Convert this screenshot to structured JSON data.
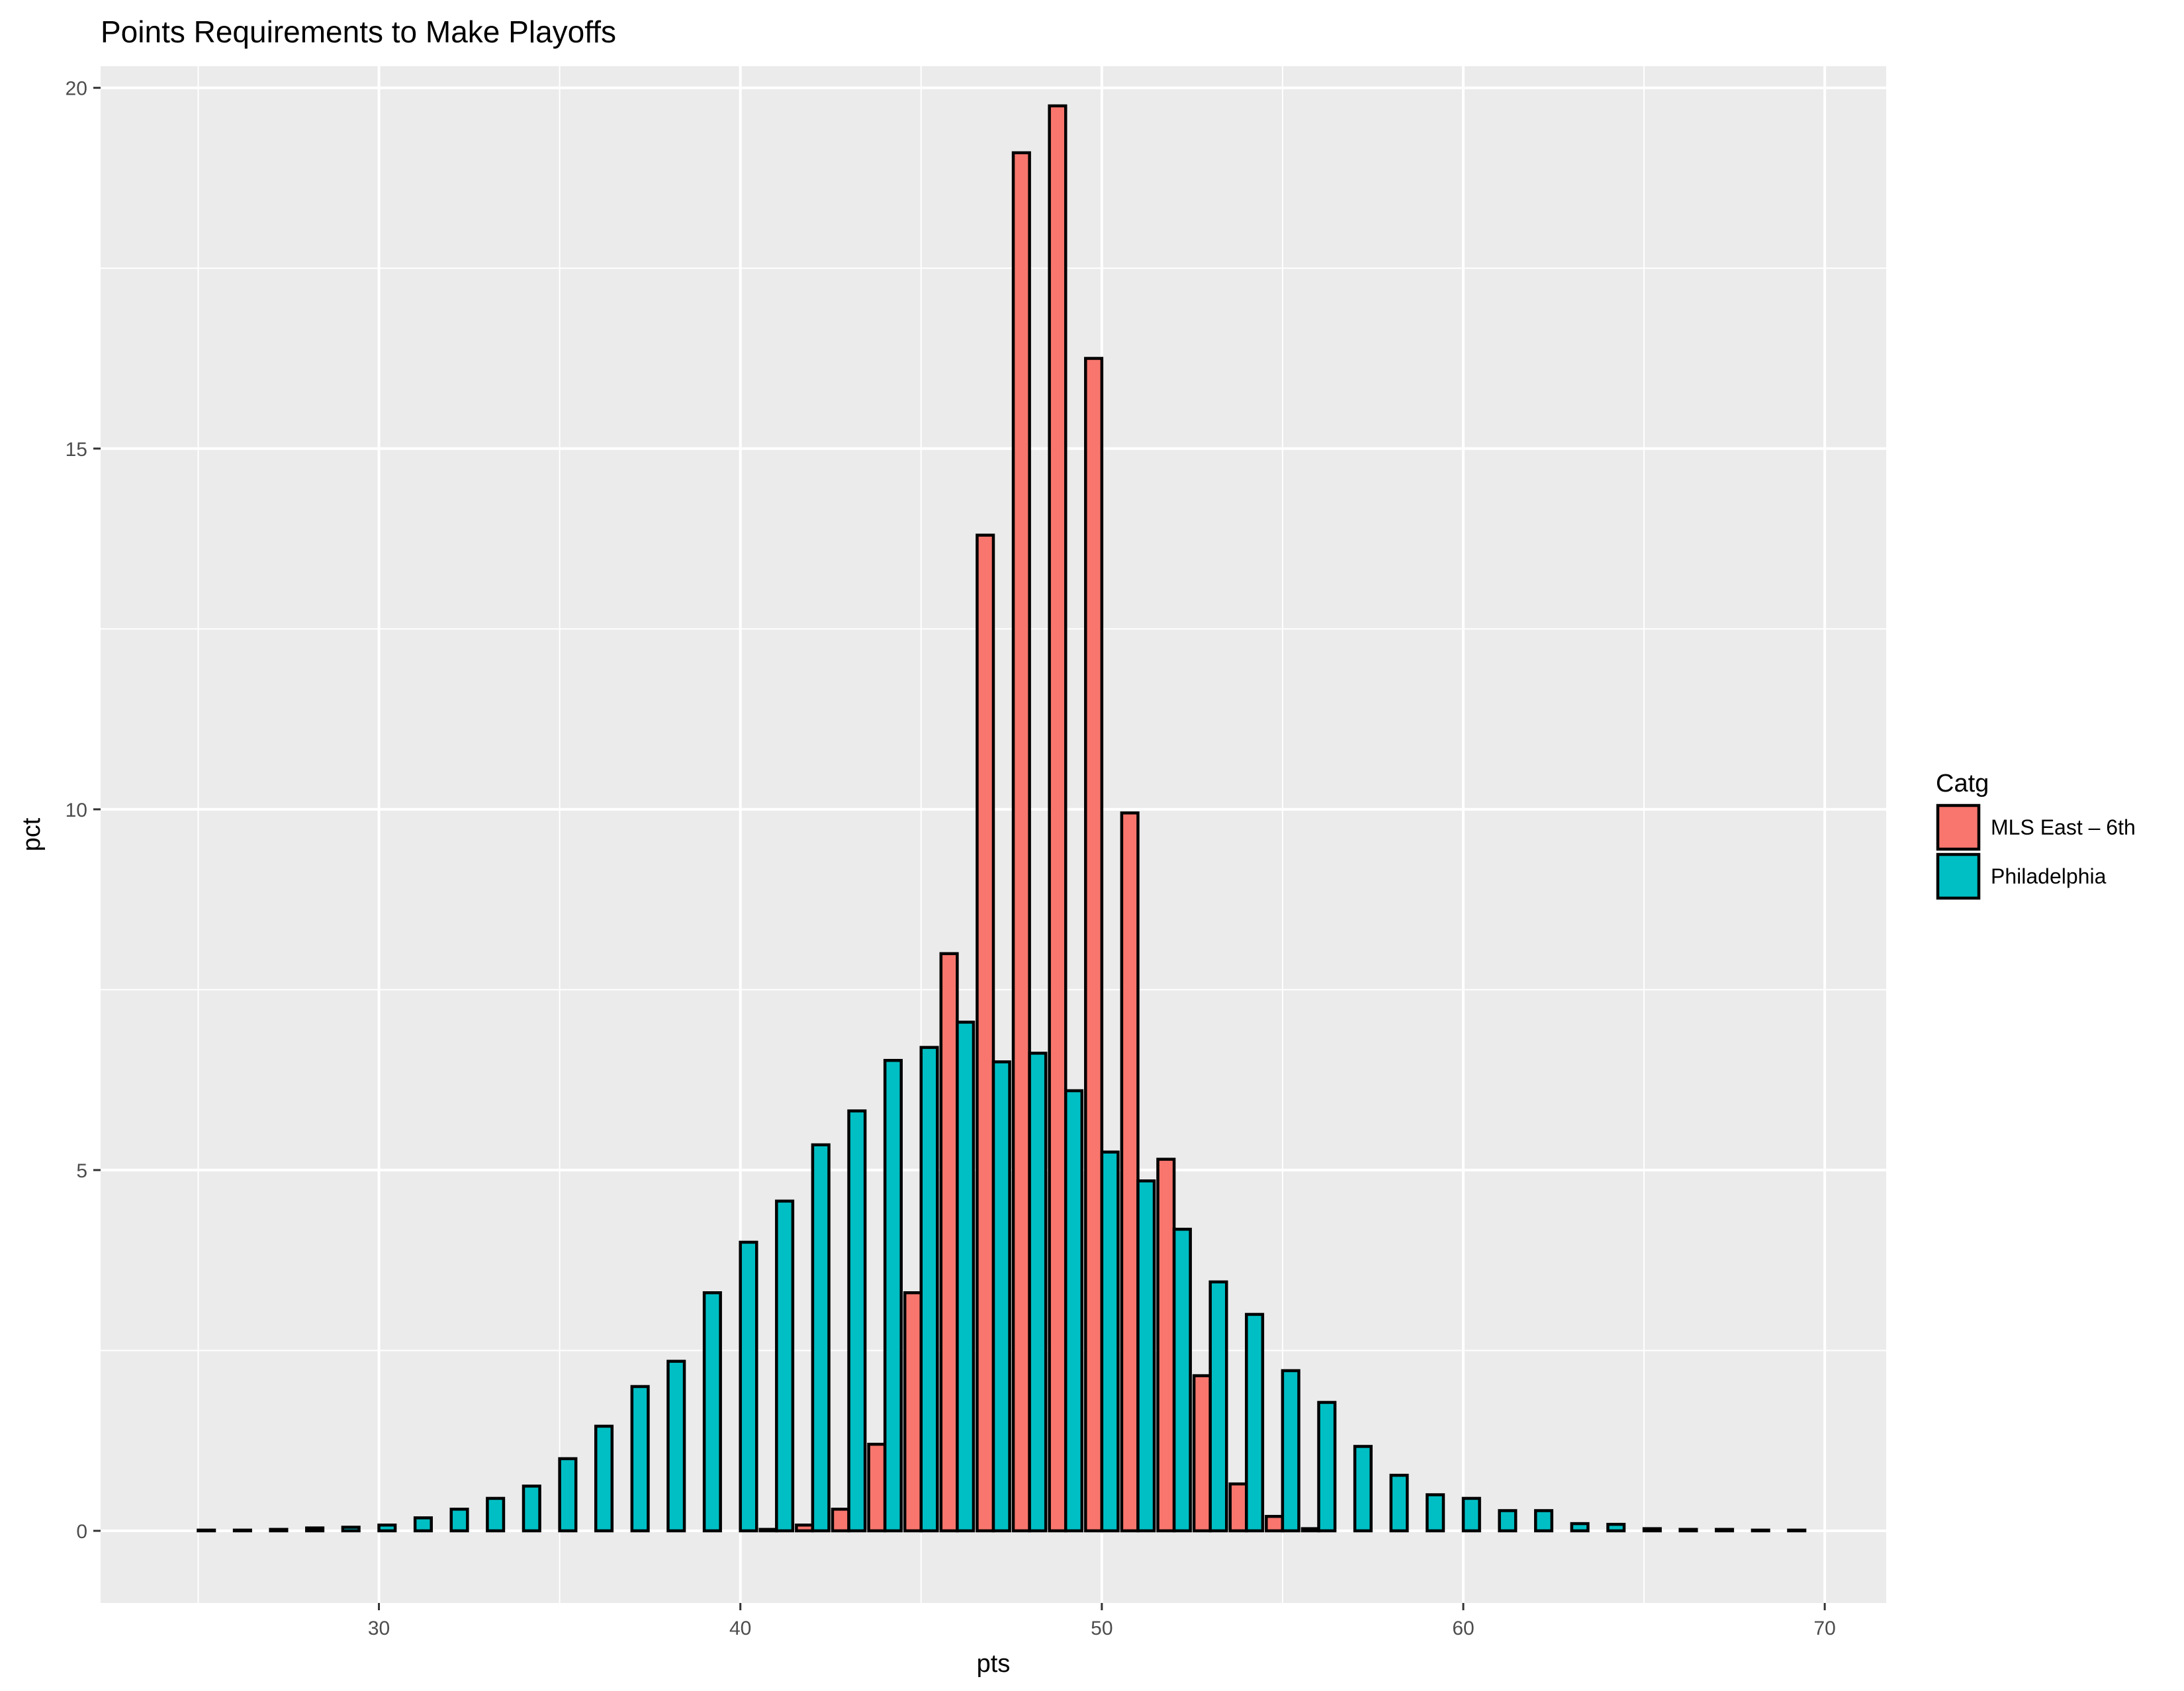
{
  "chart_data": {
    "type": "bar",
    "title": "Points Requirements to Make Playoffs",
    "xlabel": "pts",
    "ylabel": "pct",
    "xlim": [
      22.3,
      71.7
    ],
    "ylim": [
      -1,
      20.3
    ],
    "xticks": [
      30,
      40,
      50,
      60,
      70
    ],
    "yticks": [
      0,
      5,
      10,
      15,
      20
    ],
    "legend": {
      "title": "Catg",
      "position": "right"
    },
    "grid": true,
    "bar_width": 0.9,
    "x": [
      25,
      26,
      27,
      28,
      29,
      30,
      31,
      32,
      33,
      34,
      35,
      36,
      37,
      38,
      39,
      40,
      41,
      42,
      43,
      44,
      45,
      46,
      47,
      48,
      49,
      50,
      51,
      52,
      53,
      54,
      55,
      56,
      57,
      58,
      59,
      60,
      61,
      62,
      63,
      64,
      65,
      66,
      67,
      68,
      69
    ],
    "series": [
      {
        "name": "MLS East – 6th",
        "color": "#F8766D",
        "values": [
          0,
          0,
          0,
          0,
          0,
          0,
          0,
          0,
          0,
          0,
          0,
          0,
          0,
          0,
          0,
          0,
          0.02,
          0.08,
          0.3,
          1.2,
          3.3,
          8.0,
          13.8,
          19.1,
          19.75,
          16.25,
          9.95,
          5.15,
          2.15,
          0.65,
          0.2,
          0.03,
          0,
          0,
          0,
          0,
          0,
          0,
          0,
          0,
          0,
          0,
          0,
          0,
          0
        ]
      },
      {
        "name": "Philadelphia",
        "color": "#00BFC4",
        "values": [
          0.01,
          0.01,
          0.02,
          0.04,
          0.05,
          0.08,
          0.18,
          0.3,
          0.45,
          0.62,
          1.0,
          1.45,
          2.0,
          2.35,
          3.3,
          4.0,
          4.57,
          5.35,
          5.82,
          6.52,
          6.7,
          7.05,
          6.5,
          6.62,
          6.1,
          5.25,
          4.85,
          4.18,
          3.45,
          3.0,
          2.22,
          1.78,
          1.17,
          0.77,
          0.5,
          0.45,
          0.28,
          0.28,
          0.1,
          0.09,
          0.03,
          0.02,
          0.02,
          0.01,
          0.01
        ]
      }
    ]
  }
}
